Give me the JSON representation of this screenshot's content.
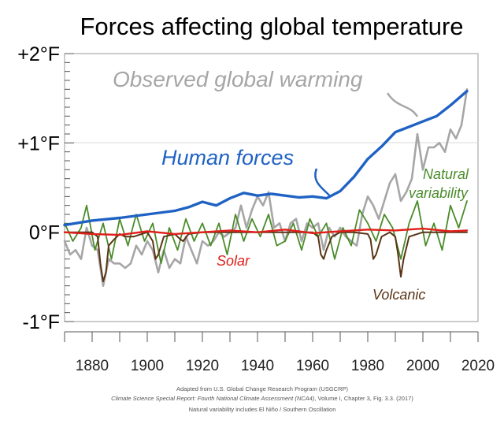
{
  "chart_data": {
    "type": "line",
    "title": "Forces affecting global temperature",
    "xlim": [
      1870,
      2020
    ],
    "ylim": [
      -1,
      2
    ],
    "x_ticks": [
      1880,
      1900,
      1920,
      1940,
      1960,
      1980,
      2000,
      2020
    ],
    "y_ticks": [
      {
        "value": 2,
        "label": "+2°F"
      },
      {
        "value": 1,
        "label": "+1°F"
      },
      {
        "value": 0,
        "label": "0°F"
      },
      {
        "value": -1,
        "label": "-1°F"
      }
    ],
    "grid": "horizontal at +1°F",
    "series": [
      {
        "name": "Observed global warming",
        "color": "#a6a6a6",
        "x": [
          1870,
          1872,
          1874,
          1876,
          1878,
          1880,
          1882,
          1884,
          1886,
          1888,
          1890,
          1892,
          1894,
          1896,
          1898,
          1900,
          1902,
          1904,
          1906,
          1908,
          1910,
          1912,
          1914,
          1916,
          1918,
          1920,
          1922,
          1924,
          1926,
          1928,
          1930,
          1932,
          1934,
          1936,
          1938,
          1940,
          1942,
          1944,
          1946,
          1948,
          1950,
          1952,
          1954,
          1956,
          1958,
          1960,
          1962,
          1964,
          1966,
          1968,
          1970,
          1972,
          1974,
          1976,
          1978,
          1980,
          1982,
          1984,
          1986,
          1988,
          1990,
          1992,
          1994,
          1996,
          1998,
          2000,
          2002,
          2004,
          2006,
          2008,
          2010,
          2012,
          2014,
          2016
        ],
        "values": [
          -0.1,
          -0.25,
          -0.2,
          -0.3,
          0.05,
          -0.15,
          -0.2,
          -0.6,
          -0.3,
          -0.35,
          -0.35,
          -0.4,
          -0.35,
          -0.15,
          -0.25,
          -0.1,
          -0.2,
          -0.45,
          -0.2,
          -0.4,
          -0.3,
          -0.35,
          -0.05,
          -0.2,
          -0.35,
          -0.1,
          -0.15,
          -0.1,
          0.0,
          -0.05,
          0.0,
          0.05,
          0.3,
          0.05,
          0.25,
          0.4,
          0.3,
          0.45,
          0.05,
          0.1,
          -0.1,
          0.1,
          0.15,
          -0.1,
          0.1,
          0.05,
          0.1,
          -0.2,
          0.05,
          -0.05,
          0.05,
          -0.05,
          -0.1,
          -0.15,
          0.2,
          0.4,
          0.3,
          0.15,
          0.35,
          0.55,
          0.65,
          0.35,
          0.45,
          0.6,
          1.1,
          0.7,
          0.95,
          0.95,
          1.0,
          0.9,
          1.15,
          1.05,
          1.2,
          1.6
        ]
      },
      {
        "name": "Human forces",
        "color": "#1f62c4",
        "x": [
          1870,
          1880,
          1890,
          1900,
          1910,
          1915,
          1920,
          1925,
          1930,
          1935,
          1940,
          1945,
          1950,
          1955,
          1960,
          1965,
          1970,
          1975,
          1980,
          1985,
          1990,
          1995,
          2000,
          2005,
          2010,
          2016
        ],
        "values": [
          0.08,
          0.13,
          0.16,
          0.2,
          0.24,
          0.28,
          0.34,
          0.3,
          0.38,
          0.44,
          0.41,
          0.43,
          0.41,
          0.39,
          0.4,
          0.38,
          0.46,
          0.62,
          0.82,
          0.96,
          1.12,
          1.18,
          1.24,
          1.3,
          1.42,
          1.58
        ]
      },
      {
        "name": "Natural variability",
        "color": "#4a8c2a",
        "x": [
          1870,
          1873,
          1876,
          1878,
          1881,
          1884,
          1887,
          1890,
          1893,
          1896,
          1899,
          1902,
          1905,
          1908,
          1911,
          1914,
          1917,
          1920,
          1923,
          1926,
          1929,
          1932,
          1935,
          1938,
          1941,
          1944,
          1947,
          1950,
          1953,
          1956,
          1959,
          1962,
          1965,
          1968,
          1971,
          1974,
          1977,
          1980,
          1983,
          1986,
          1989,
          1992,
          1995,
          1998,
          2001,
          2004,
          2007,
          2010,
          2013,
          2016
        ],
        "values": [
          0.1,
          -0.1,
          0.05,
          0.3,
          -0.2,
          0.1,
          -0.3,
          0.15,
          -0.15,
          0.2,
          -0.1,
          0.1,
          -0.35,
          0.05,
          -0.2,
          0.15,
          -0.1,
          0.1,
          -0.15,
          0.1,
          -0.25,
          0.2,
          -0.1,
          0.15,
          -0.05,
          0.2,
          -0.15,
          -0.1,
          0.1,
          -0.2,
          0.15,
          -0.05,
          0.1,
          -0.3,
          0.05,
          -0.15,
          0.25,
          0.1,
          -0.1,
          0.2,
          0.05,
          -0.3,
          0.1,
          0.35,
          -0.15,
          0.1,
          -0.2,
          0.3,
          0.05,
          0.35
        ]
      },
      {
        "name": "Solar",
        "color": "#e0201b",
        "x": [
          1870,
          1880,
          1890,
          1900,
          1910,
          1920,
          1930,
          1940,
          1950,
          1960,
          1970,
          1980,
          1990,
          2000,
          2010,
          2016
        ],
        "values": [
          0.0,
          -0.02,
          -0.03,
          0.01,
          -0.02,
          0.0,
          0.02,
          0.0,
          0.03,
          -0.01,
          0.01,
          0.03,
          0.02,
          0.04,
          0.01,
          0.02
        ]
      },
      {
        "name": "Volcanic",
        "color": "#5a3416",
        "x": [
          1870,
          1880,
          1882,
          1883,
          1884,
          1885,
          1886,
          1888,
          1890,
          1892,
          1895,
          1900,
          1902,
          1903,
          1904,
          1906,
          1910,
          1912,
          1913,
          1915,
          1920,
          1930,
          1940,
          1950,
          1960,
          1962,
          1963,
          1964,
          1965,
          1967,
          1970,
          1975,
          1980,
          1981,
          1982,
          1983,
          1985,
          1988,
          1990,
          1991,
          1992,
          1993,
          1995,
          2000,
          2010,
          2016
        ],
        "values": [
          0.0,
          0.0,
          -0.05,
          -0.35,
          -0.55,
          -0.45,
          -0.15,
          -0.08,
          -0.02,
          -0.05,
          -0.05,
          0.0,
          -0.1,
          -0.3,
          -0.25,
          -0.05,
          -0.02,
          -0.08,
          -0.1,
          -0.02,
          0.0,
          0.0,
          0.0,
          0.0,
          0.0,
          -0.05,
          -0.25,
          -0.3,
          -0.2,
          -0.05,
          0.0,
          0.0,
          -0.02,
          -0.08,
          -0.3,
          -0.25,
          -0.05,
          0.0,
          -0.05,
          -0.25,
          -0.5,
          -0.3,
          -0.05,
          0.0,
          0.0,
          0.0
        ]
      }
    ],
    "annotations": [
      {
        "text": "Observed global warming",
        "color": "#a6a6a6"
      },
      {
        "text": "Human forces",
        "color": "#1f62c4"
      },
      {
        "text": "Natural",
        "color": "#4a8c2a"
      },
      {
        "text": "variability",
        "color": "#4a8c2a"
      },
      {
        "text": "Solar",
        "color": "#e0201b"
      },
      {
        "text": "Volcanic",
        "color": "#5a3416"
      }
    ]
  },
  "credits": {
    "line1": "Adapted from U.S. Global Change Research Program (USGCRP)",
    "line2_italic": "Climate Science Special Report: Fourth National Climate Assessment (NCA4)",
    "line2_rest": ", Volume I, Chapter 3, Fig. 3.3. (2017)",
    "line3": "Natural variability includes El Niño / Southern Oscillation",
    "line3_color": "#4a8c2a"
  }
}
